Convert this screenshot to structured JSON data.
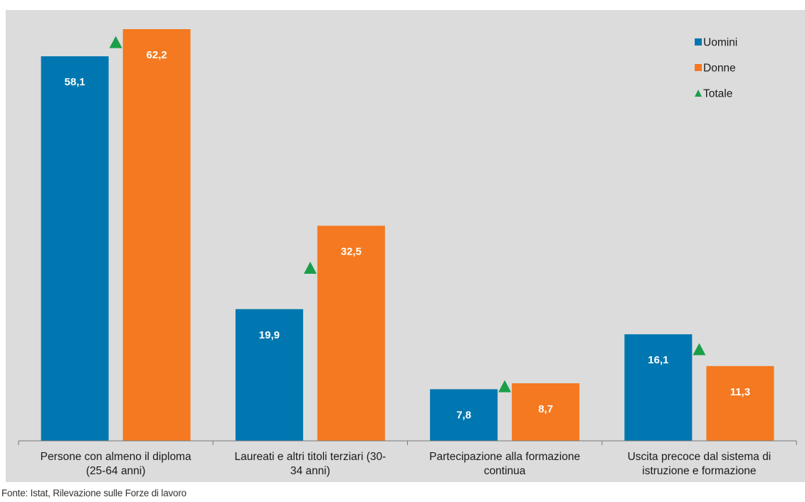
{
  "chart_data": {
    "type": "bar",
    "categories": [
      [
        "Persone con almeno il diploma",
        "(25-64 anni)"
      ],
      [
        "Laureati e altri titoli terziari (30-",
        "34 anni)"
      ],
      [
        "Partecipazione alla formazione",
        "continua"
      ],
      [
        "Uscita precoce dal sistema di",
        "istruzione e formazione"
      ]
    ],
    "series": [
      {
        "name": "Uomini",
        "values": [
          58.1,
          19.9,
          7.8,
          16.1
        ],
        "labels": [
          "58,1",
          "19,9",
          "7,8",
          "16,1"
        ],
        "color": "#0077b0",
        "marker": "bar"
      },
      {
        "name": "Donne",
        "values": [
          62.2,
          32.5,
          8.7,
          11.3
        ],
        "labels": [
          "62,2",
          "32,5",
          "8,7",
          "11,3"
        ],
        "color": "#f47920",
        "marker": "bar"
      },
      {
        "name": "Totale",
        "values": [
          60.2,
          26.1,
          8.2,
          13.8
        ],
        "color": "#1a9e4a",
        "marker": "triangle"
      }
    ],
    "ylim": [
      0,
      66
    ],
    "grid": false,
    "legend_position": "top-right",
    "plot_background": "#dcdcdc"
  },
  "source_note": "Fonte: Istat, Rilevazione sulle Forze di lavoro"
}
